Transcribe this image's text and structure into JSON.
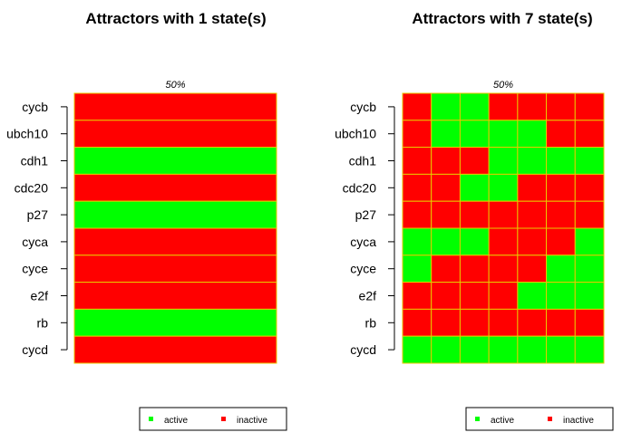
{
  "colors": {
    "active": "#00ff00",
    "inactive": "#ff0000",
    "grid": "#e8c800",
    "frame": "#000000"
  },
  "chart_data": [
    {
      "type": "heatmap",
      "title": "Attractors with 1 state(s)",
      "column_labels": [
        "50%"
      ],
      "genes": [
        "cycb",
        "ubch10",
        "cdh1",
        "cdc20",
        "p27",
        "cyca",
        "cyce",
        "e2f",
        "rb",
        "cycd"
      ],
      "states": [
        [
          0
        ],
        [
          0
        ],
        [
          1
        ],
        [
          0
        ],
        [
          1
        ],
        [
          0
        ],
        [
          0
        ],
        [
          0
        ],
        [
          1
        ],
        [
          0
        ]
      ],
      "legend": {
        "entries": [
          "active",
          "inactive"
        ],
        "placement": "bottom"
      }
    },
    {
      "type": "heatmap",
      "title": "Attractors with 7 state(s)",
      "column_labels": [
        "50%"
      ],
      "genes": [
        "cycb",
        "ubch10",
        "cdh1",
        "cdc20",
        "p27",
        "cyca",
        "cyce",
        "e2f",
        "rb",
        "cycd"
      ],
      "states": [
        [
          0,
          1,
          1,
          0,
          0,
          0,
          0
        ],
        [
          0,
          1,
          1,
          1,
          1,
          0,
          0
        ],
        [
          0,
          0,
          0,
          1,
          1,
          1,
          1
        ],
        [
          0,
          0,
          1,
          1,
          0,
          0,
          0
        ],
        [
          0,
          0,
          0,
          0,
          0,
          0,
          0
        ],
        [
          1,
          1,
          1,
          0,
          0,
          0,
          1
        ],
        [
          1,
          0,
          0,
          0,
          0,
          1,
          1
        ],
        [
          0,
          0,
          0,
          0,
          1,
          1,
          1
        ],
        [
          0,
          0,
          0,
          0,
          0,
          0,
          0
        ],
        [
          1,
          1,
          1,
          1,
          1,
          1,
          1
        ]
      ],
      "legend": {
        "entries": [
          "active",
          "inactive"
        ],
        "placement": "bottom"
      }
    }
  ]
}
